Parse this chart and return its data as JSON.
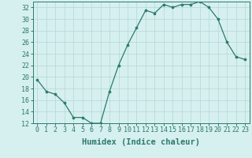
{
  "x": [
    0,
    1,
    2,
    3,
    4,
    5,
    6,
    7,
    8,
    9,
    10,
    11,
    12,
    13,
    14,
    15,
    16,
    17,
    18,
    19,
    20,
    21,
    22,
    23
  ],
  "y": [
    19.5,
    17.5,
    17.0,
    15.5,
    13.0,
    13.0,
    12.0,
    12.0,
    17.5,
    22.0,
    25.5,
    28.5,
    31.5,
    31.0,
    32.5,
    32.0,
    32.5,
    32.5,
    33.0,
    32.0,
    30.0,
    26.0,
    23.5,
    23.0
  ],
  "line_color": "#2d7a6a",
  "marker_color": "#2d7a6a",
  "bg_color": "#d6f0ef",
  "grid_color": "#b8dbd9",
  "xlabel": "Humidex (Indice chaleur)",
  "ylim": [
    12,
    33
  ],
  "xlim": [
    -0.5,
    23.5
  ],
  "yticks": [
    12,
    14,
    16,
    18,
    20,
    22,
    24,
    26,
    28,
    30,
    32
  ],
  "xticks": [
    0,
    1,
    2,
    3,
    4,
    5,
    6,
    7,
    8,
    9,
    10,
    11,
    12,
    13,
    14,
    15,
    16,
    17,
    18,
    19,
    20,
    21,
    22,
    23
  ],
  "font_color": "#2d7a6a",
  "tick_label_fontsize": 6,
  "xlabel_fontsize": 7.5
}
